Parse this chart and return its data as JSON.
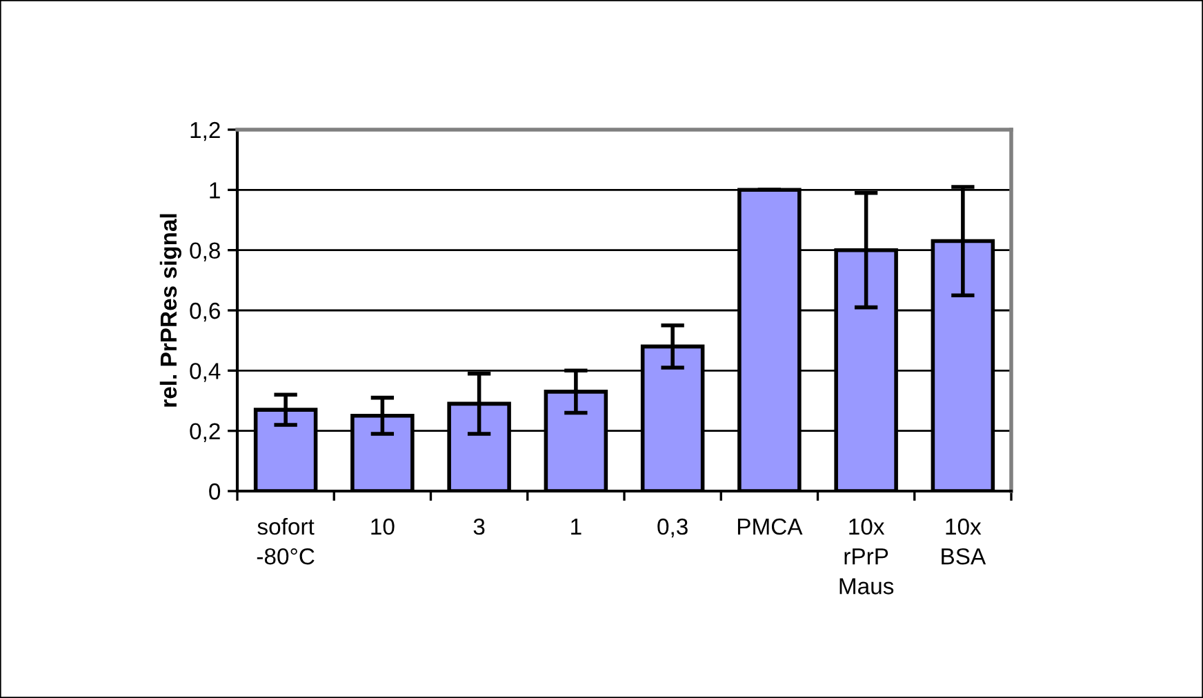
{
  "chart_data": {
    "type": "bar",
    "ylabel": "rel. PrPRes signal",
    "categories": [
      "sofort\n-80°C",
      "10",
      "3",
      "1",
      "0,3",
      "PMCA",
      "10x\nrPrP\nMaus",
      "10x\nBSA"
    ],
    "values": [
      0.27,
      0.25,
      0.29,
      0.33,
      0.48,
      1.0,
      0.8,
      0.83
    ],
    "errors": [
      0.05,
      0.06,
      0.1,
      0.07,
      0.07,
      0,
      0.19,
      0.18
    ],
    "color": "#9999ff",
    "ylim": [
      0,
      1.2
    ],
    "yticks": [
      0,
      {
        "value": 0.2,
        "label": "0,2"
      },
      {
        "value": 0.4,
        "label": "0,4"
      },
      {
        "value": 0.6,
        "label": "0,6"
      },
      {
        "value": 0.8,
        "label": "0,8"
      },
      1,
      {
        "value": 1.2,
        "label": "1,2"
      }
    ],
    "grid": "y"
  }
}
